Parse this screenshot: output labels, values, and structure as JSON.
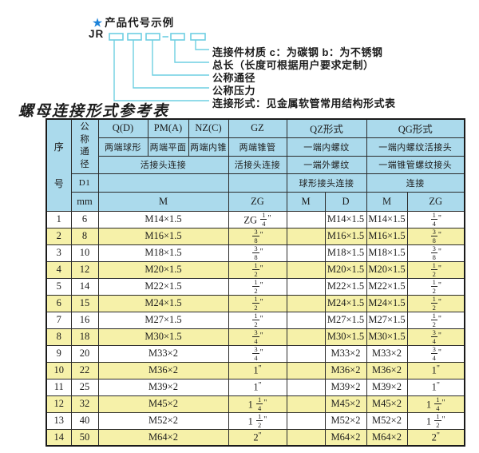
{
  "colors": {
    "accent_cyan": "#6ecfe2",
    "star_blue": "#1b82d9",
    "header_blue": "#abdaec",
    "row_yellow": "#f6f1a9",
    "border_dark": "#2b2b2b"
  },
  "diagram": {
    "star": "★",
    "legend_title": "产品代号示例",
    "code_prefix": "JR",
    "callouts": [
      "连接件材质  c：为碳钢  b：为不锈钢",
      "总长（长度可根据用户要求定制）",
      "公称通径",
      "公称压力",
      "连接形式：见金属软管常用结构形式表"
    ]
  },
  "table_title": "螺母连接形式参考表",
  "table": {
    "header": {
      "seq": "序号",
      "dn": "公称通径",
      "d1": "D1",
      "mm": "mm",
      "m": "M",
      "union_conn": "活接头连接",
      "q_code": "Q(D)",
      "q_desc": "两端球形",
      "pm_code": "PM(A)",
      "pm_desc": "两端平面",
      "nz_code": "NZ(C)",
      "nz_desc": "两端内锥",
      "gz_code": "GZ",
      "gz_desc": "两端锥管",
      "gz_conn": "活接头连接",
      "gz_unit": "ZG",
      "qz_code": "QZ形式",
      "qz_row2": "一端内螺纹",
      "qz_row3": "一端外螺纹",
      "qz_row4": "球形接头连接",
      "qz_m": "M",
      "qz_d": "D",
      "qg_code": "QG形式",
      "qg_row2": "一端内螺纹活接头",
      "qg_row3": "一端锥管螺纹接头",
      "qg_row4": "连接",
      "qg_m": "M",
      "qg_zg": "ZG"
    },
    "rows": [
      [
        "1",
        "6",
        "M14×1.5",
        "ZG 1/4\"",
        "",
        "M14×1.5",
        "M14×1.5",
        "1/4\""
      ],
      [
        "2",
        "8",
        "M16×1.5",
        "3/8\"",
        "",
        "M16×1.5",
        "M16×1.5",
        "3/8\""
      ],
      [
        "3",
        "10",
        "M18×1.5",
        "3/8\"",
        "",
        "M18×1.5",
        "M18×1.5",
        "3/8\""
      ],
      [
        "4",
        "12",
        "M20×1.5",
        "1/2\"",
        "",
        "M20×1.5",
        "M20×1.5",
        "1/2\""
      ],
      [
        "5",
        "14",
        "M22×1.5",
        "1/2\"",
        "",
        "M22×1.5",
        "M22×1.5",
        "1/2\""
      ],
      [
        "6",
        "15",
        "M24×1.5",
        "1/2\"",
        "",
        "M24×1.5",
        "M24×1.5",
        "1/2\""
      ],
      [
        "7",
        "16",
        "M27×1.5",
        "1/2\"",
        "",
        "M27×1.5",
        "M27×1.5",
        "1/2\""
      ],
      [
        "8",
        "18",
        "M30×1.5",
        "3/4\"",
        "",
        "M30×1.5",
        "M30×1.5",
        "3/4\""
      ],
      [
        "9",
        "20",
        "M33×2",
        "3/4\"",
        "",
        "M33×2",
        "M33×2",
        "3/4\""
      ],
      [
        "10",
        "22",
        "M36×2",
        "1\"",
        "",
        "M36×2",
        "M36×2",
        "1\""
      ],
      [
        "11",
        "25",
        "M39×2",
        "1\"",
        "",
        "M39×2",
        "M39×2",
        "1\""
      ],
      [
        "12",
        "32",
        "M45×2",
        "1 1/4\"",
        "",
        "M45×2",
        "M45×2",
        "1 1/4\""
      ],
      [
        "13",
        "40",
        "M52×2",
        "1 1/2\"",
        "",
        "M52×2",
        "M52×2",
        "1 1/2\""
      ],
      [
        "14",
        "50",
        "M64×2",
        "2\"",
        "",
        "M64×2",
        "M64×2",
        "2\""
      ]
    ]
  }
}
